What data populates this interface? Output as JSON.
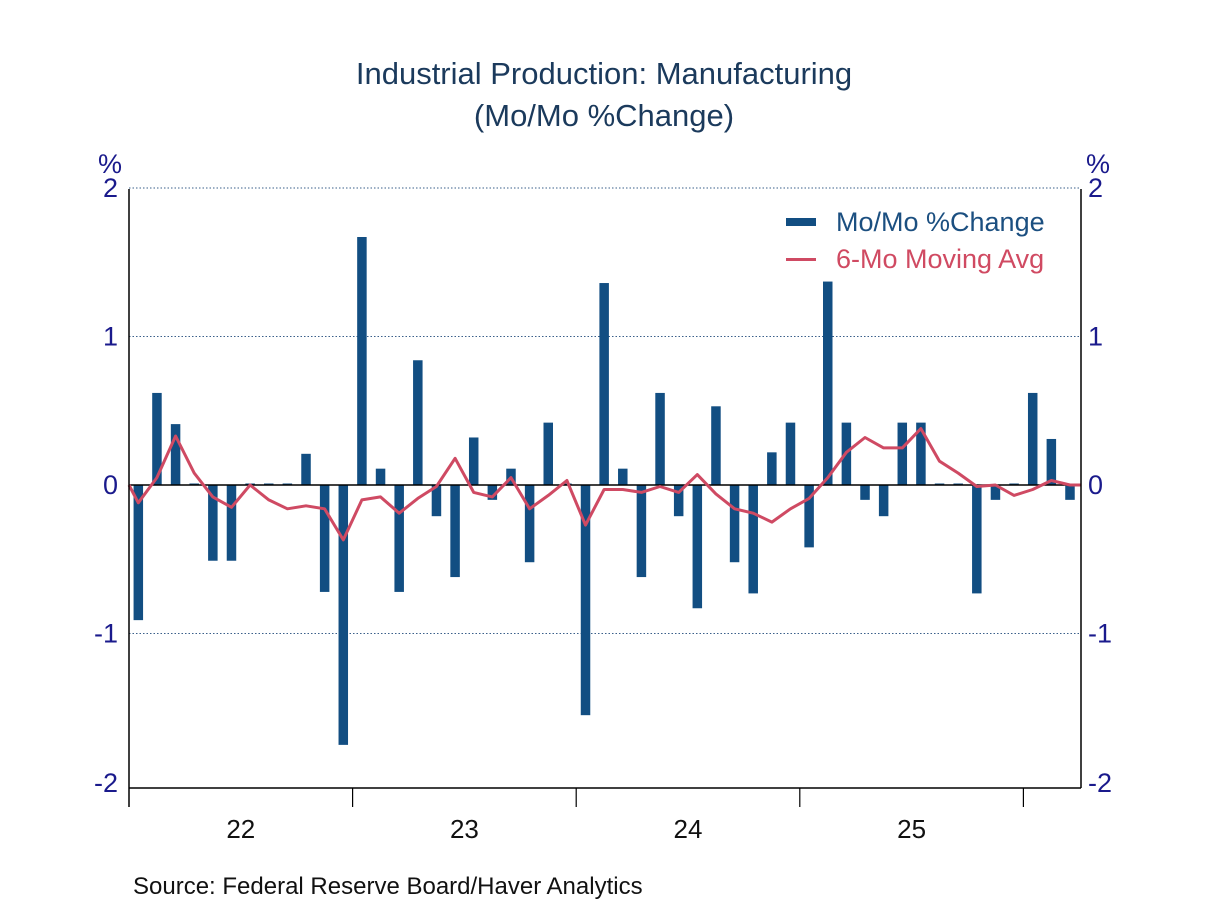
{
  "chart_data": {
    "type": "bar",
    "title": "Industrial Production: Manufacturing",
    "subtitle": "(Mo/Mo %Change)",
    "xlabel": "",
    "ylabel_left": "%",
    "ylabel_right": "%",
    "ylim": [
      -2,
      2
    ],
    "yticks": [
      2,
      1,
      0,
      -1,
      -2
    ],
    "ytick_labels": [
      "2",
      "1",
      "0",
      "-1",
      "-2"
    ],
    "grid": true,
    "legend_position": "top-right",
    "x_year_labels": [
      "22",
      "23",
      "24",
      "25"
    ],
    "x_start": "2022-01",
    "x_end": "2026-03",
    "frequency": "monthly",
    "colors": {
      "bars": "#124e82",
      "line": "#cf4a63",
      "grid": "#3a5f8a",
      "axis": "#000000"
    },
    "series": [
      {
        "name": "Mo/Mo %Change",
        "kind": "bar",
        "values": [
          -0.91,
          0.62,
          0.41,
          0.0,
          -0.51,
          -0.51,
          0.0,
          0.0,
          0.0,
          0.21,
          -0.72,
          -1.75,
          1.67,
          0.11,
          -0.72,
          0.84,
          -0.21,
          -0.62,
          0.32,
          -0.1,
          0.11,
          -0.52,
          0.42,
          0.0,
          -1.55,
          1.36,
          0.11,
          -0.62,
          0.62,
          -0.21,
          -0.83,
          0.53,
          -0.52,
          -0.73,
          0.22,
          0.42,
          -0.42,
          1.37,
          0.42,
          -0.1,
          -0.21,
          0.42,
          0.42,
          0.0,
          0.0,
          -0.73,
          -0.1,
          0.0,
          0.62,
          0.31,
          -0.1
        ]
      },
      {
        "name": "6-Mo Moving Avg",
        "kind": "line",
        "values": [
          -0.12,
          0.05,
          0.33,
          0.08,
          -0.08,
          -0.15,
          0.0,
          -0.1,
          -0.16,
          -0.14,
          -0.16,
          -0.37,
          -0.1,
          -0.08,
          -0.19,
          -0.09,
          -0.01,
          0.18,
          -0.05,
          -0.08,
          0.05,
          -0.16,
          -0.07,
          0.03,
          -0.27,
          -0.03,
          -0.03,
          -0.05,
          -0.01,
          -0.05,
          0.07,
          -0.06,
          -0.16,
          -0.19,
          -0.25,
          -0.16,
          -0.09,
          0.05,
          0.22,
          0.32,
          0.25,
          0.25,
          0.38,
          0.16,
          0.08,
          -0.01,
          0.0,
          -0.07,
          -0.03,
          0.03,
          0.0
        ]
      }
    ]
  },
  "source": "Source:  Federal Reserve Board/Haver Analytics"
}
